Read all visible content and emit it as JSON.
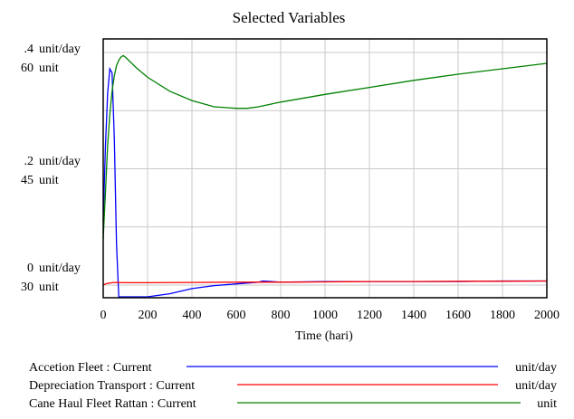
{
  "chart_data": {
    "type": "line",
    "title": "Selected Variables",
    "xlabel": "Time (hari)",
    "xlim": [
      0,
      2000
    ],
    "x_ticks": [
      "0",
      "200",
      "400",
      "600",
      "800",
      "1000",
      "1200",
      "1400",
      "1600",
      "1800",
      "2000"
    ],
    "x_tick_values": [
      0,
      200,
      400,
      600,
      800,
      1000,
      1200,
      1400,
      1600,
      1800,
      2000
    ],
    "grid": true,
    "legend_placement": "bottom",
    "axes": [
      {
        "unit": "unit/day",
        "ylim": [
          0,
          0.4
        ],
        "ticks": [
          {
            "value": 0.4,
            "label": ".4",
            "unit": "unit/day"
          },
          {
            "value": 0.2,
            "label": ".2",
            "unit": "unit/day"
          },
          {
            "value": 0,
            "label": "0",
            "unit": "unit/day"
          }
        ]
      },
      {
        "unit": "unit",
        "ylim": [
          30,
          60
        ],
        "ticks": [
          {
            "value": 60,
            "label": "60",
            "unit": "unit"
          },
          {
            "value": 45,
            "label": "45",
            "unit": "unit"
          },
          {
            "value": 30,
            "label": "30",
            "unit": "unit"
          }
        ]
      }
    ],
    "series": [
      {
        "name": "Accetion Fleet : Current",
        "unit": "unit/day",
        "axis": 0,
        "color": "#0000ff",
        "x": [
          0,
          10,
          20,
          30,
          40,
          50,
          60,
          70,
          80,
          90,
          100,
          200,
          300,
          400,
          500,
          600,
          700,
          720,
          800,
          1000,
          1200,
          1400,
          1600,
          1800,
          2000
        ],
        "y": [
          0.11,
          0.24,
          0.33,
          0.372,
          0.365,
          0.25,
          0.07,
          -0.02,
          -0.025,
          -0.025,
          -0.025,
          -0.025,
          -0.015,
          -0.006,
          -0.001,
          0.002,
          0.005,
          0.007,
          0.005,
          0.006,
          0.006,
          0.006,
          0.006,
          0.007,
          0.007
        ]
      },
      {
        "name": "Depreciation Transport : Current",
        "unit": "unit/day",
        "axis": 0,
        "color": "#ff0000",
        "x": [
          0,
          10,
          20,
          40,
          60,
          100,
          200,
          400,
          600,
          800,
          1000,
          1200,
          1400,
          1600,
          1800,
          2000
        ],
        "y": [
          0.0,
          0.002,
          0.003,
          0.004,
          0.0045,
          0.004,
          0.004,
          0.0045,
          0.005,
          0.005,
          0.0055,
          0.006,
          0.006,
          0.0065,
          0.0065,
          0.007
        ]
      },
      {
        "name": "Cane Haul Fleet Rattan : Current",
        "unit": "unit",
        "axis": 1,
        "color": "#008000",
        "x": [
          0,
          10,
          20,
          30,
          40,
          50,
          60,
          70,
          80,
          90,
          100,
          150,
          200,
          300,
          400,
          500,
          600,
          650,
          700,
          800,
          1000,
          1200,
          1400,
          1600,
          1800,
          2000
        ],
        "y": [
          36.0,
          42.0,
          48.0,
          52.0,
          55.0,
          57.0,
          58.3,
          59.0,
          59.4,
          59.6,
          59.4,
          58.0,
          56.8,
          55.0,
          53.8,
          53.0,
          52.8,
          52.8,
          53.0,
          53.6,
          54.6,
          55.5,
          56.4,
          57.2,
          57.9,
          58.6
        ]
      }
    ]
  },
  "legend": [
    {
      "label": "Accetion Fleet : Current",
      "unit": "unit/day",
      "color": "#0000ff"
    },
    {
      "label": "Depreciation Transport : Current",
      "unit": "unit/day",
      "color": "#ff0000"
    },
    {
      "label": "Cane Haul Fleet Rattan : Current",
      "unit": "unit",
      "color": "#008000"
    }
  ]
}
